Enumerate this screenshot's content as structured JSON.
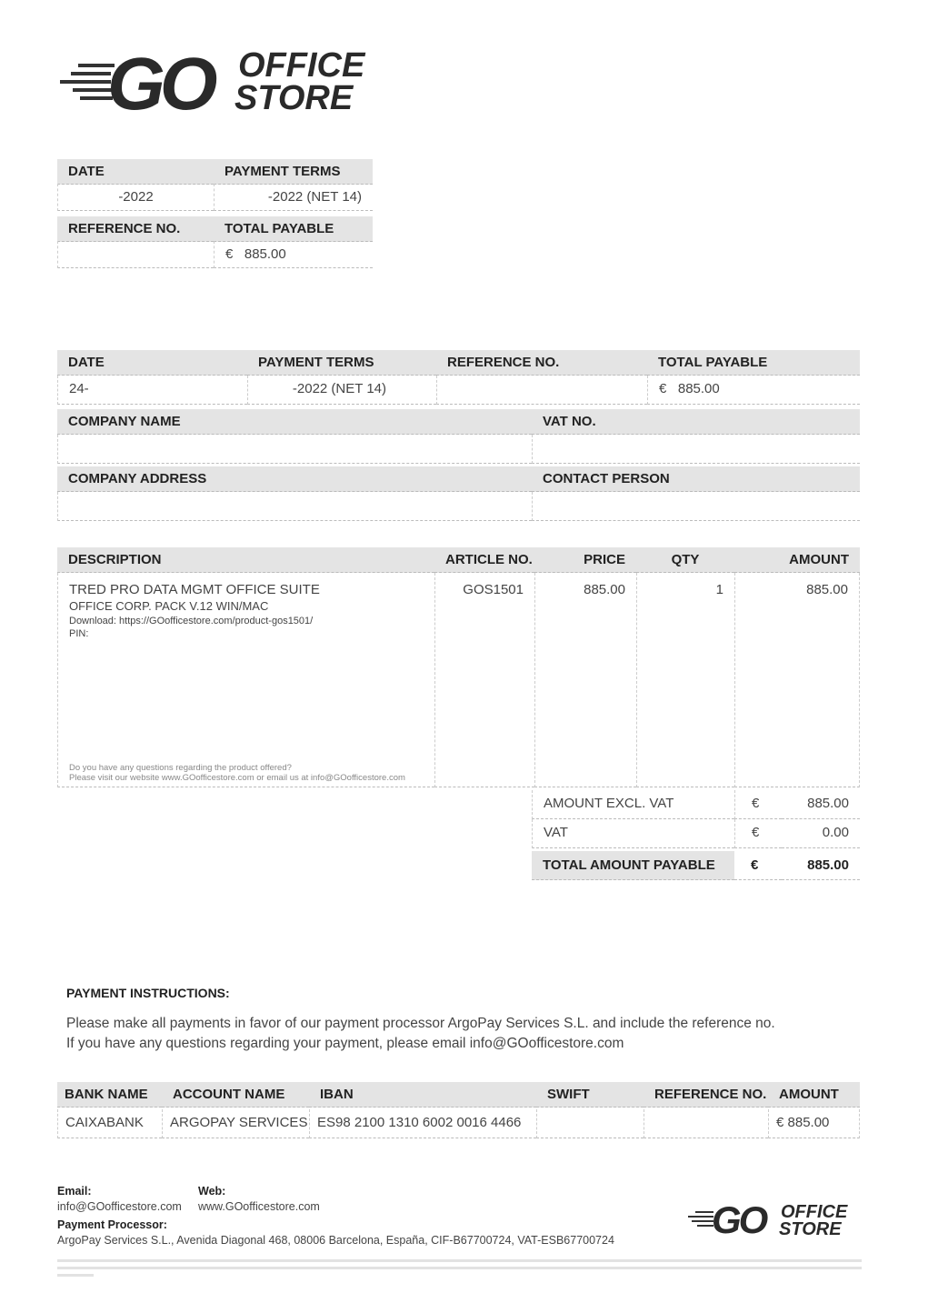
{
  "brand": {
    "go": "GO",
    "office": "OFFICE",
    "store": "STORE"
  },
  "summary": {
    "date_label": "DATE",
    "date_value": "-2022",
    "terms_label": "PAYMENT TERMS",
    "terms_value": "-2022 (NET 14)",
    "ref_label": "REFERENCE NO.",
    "ref_value": "",
    "total_label": "TOTAL PAYABLE",
    "currency": "€",
    "total_value": "885.00"
  },
  "details": {
    "date_label": "DATE",
    "date_value": "24-",
    "terms_label": "PAYMENT TERMS",
    "terms_value": "-2022 (NET 14)",
    "ref_label": "REFERENCE NO.",
    "ref_value": "",
    "total_label": "TOTAL PAYABLE",
    "currency": "€",
    "total_value": "885.00",
    "company_name_label": "COMPANY NAME",
    "vat_label": "VAT NO.",
    "company_address_label": "COMPANY ADDRESS",
    "contact_label": "CONTACT PERSON"
  },
  "items": {
    "headers": [
      "DESCRIPTION",
      "ARTICLE NO.",
      "PRICE",
      "QTY",
      "AMOUNT"
    ],
    "rows": [
      {
        "title": "TRED PRO DATA MGMT OFFICE SUITE",
        "subtitle": "OFFICE CORP. PACK V.12 WIN/MAC",
        "download": "Download: https://GOofficestore.com/product-gos1501/",
        "pin": "PIN:",
        "article": "GOS1501",
        "price": "885.00",
        "qty": "1",
        "amount": "885.00"
      }
    ],
    "note_1": "Do you have any questions regarding the product offered?",
    "note_2": "Please visit our website www.GOofficestore.com or email us at info@GOofficestore.com"
  },
  "totals": [
    {
      "label": "AMOUNT EXCL. VAT",
      "currency": "€",
      "value": "885.00"
    },
    {
      "label": "VAT",
      "currency": "€",
      "value": "0.00"
    },
    {
      "label": "TOTAL AMOUNT PAYABLE",
      "currency": "€",
      "value": "885.00"
    }
  ],
  "payment": {
    "title": "PAYMENT INSTRUCTIONS:",
    "line_1": "Please make all payments in favor of our payment processor ArgoPay Services S.L. and include the reference no.",
    "line_2": "If you have any questions regarding your payment, please email info@GOofficestore.com"
  },
  "bank": {
    "headers": [
      "BANK NAME",
      "ACCOUNT NAME",
      "IBAN",
      "SWIFT",
      "REFERENCE NO.",
      "AMOUNT"
    ],
    "values": [
      "CAIXABANK",
      "ARGOPAY SERVICES",
      "ES98 2100 1310 6002 0016 4466",
      "",
      "",
      "€ 885.00"
    ]
  },
  "footer": {
    "email_label": "Email:",
    "email": "info@GOofficestore.com",
    "web_label": "Web:",
    "web": "www.GOofficestore.com",
    "processor_label": "Payment Processor:",
    "processor": "ArgoPay Services S.L., Avenida Diagonal 468, 08006 Barcelona, España, CIF-B67700724, VAT-ESB67700724"
  }
}
